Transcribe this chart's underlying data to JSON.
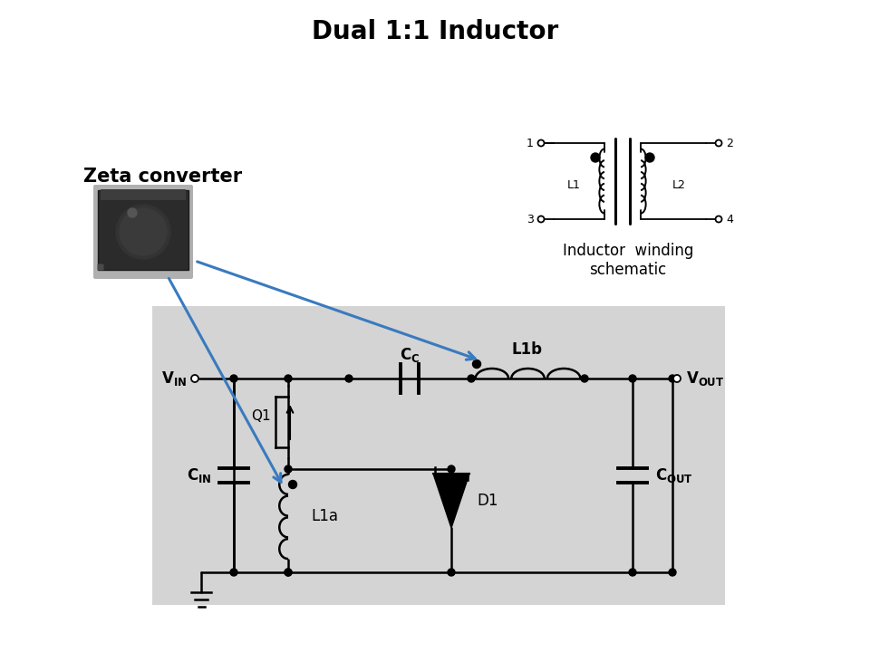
{
  "title": "Dual 1:1 Inductor",
  "title_fontsize": 20,
  "title_fontweight": "bold",
  "background_color": "#ffffff",
  "zeta_label": "Zeta converter",
  "zeta_label_fontsize": 15,
  "zeta_label_fontweight": "bold",
  "inductor_schematic_label": "Inductor  winding\nschematic",
  "inductor_schematic_label_fontsize": 12,
  "circuit_bg_color": "#d4d4d4",
  "arrow_color": "#3a7abf",
  "text_color": "#000000",
  "fig_w": 9.6,
  "fig_h": 7.2,
  "dpi": 100
}
